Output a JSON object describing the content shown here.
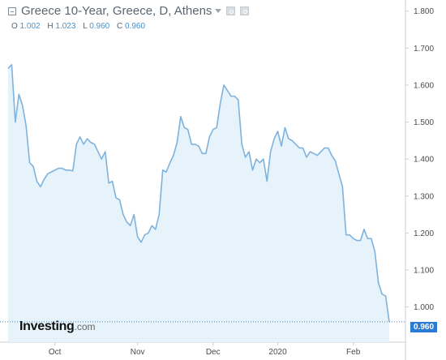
{
  "header": {
    "title": "Greece 10-Year, Greece, D, Athens",
    "ohlc": [
      {
        "label": "O",
        "value": "1.002"
      },
      {
        "label": "H",
        "value": "1.023"
      },
      {
        "label": "L",
        "value": "0.960"
      },
      {
        "label": "C",
        "value": "0.960"
      }
    ]
  },
  "branding": {
    "brand": "Investing",
    "tld": ".com"
  },
  "last_price_label": "0.960",
  "colors": {
    "line": "#7fb2dc",
    "fill": "#e6f3fb",
    "axis_text": "#4a4a4a",
    "axis_line": "#c9ced3",
    "price_badge": "#2b7bd5",
    "last_price_line": "#4d86b9"
  },
  "chart_data": {
    "type": "area",
    "title": "Greece 10-Year, Greece, D, Athens",
    "xlabel": "",
    "ylabel": "",
    "ylim": [
      0.905,
      1.83
    ],
    "x_ticks": [
      {
        "label": "Oct",
        "index": 13
      },
      {
        "label": "Nov",
        "index": 36
      },
      {
        "label": "Dec",
        "index": 57
      },
      {
        "label": "2020",
        "index": 75
      },
      {
        "label": "Feb",
        "index": 96
      }
    ],
    "y_ticks": [
      "1.000",
      "1.100",
      "1.200",
      "1.300",
      "1.400",
      "1.500",
      "1.600",
      "1.700",
      "1.800"
    ],
    "y_tick_values": [
      1.0,
      1.1,
      1.2,
      1.3,
      1.4,
      1.5,
      1.6,
      1.7,
      1.8
    ],
    "last_value": 0.96,
    "series": [
      {
        "values": [
          1.645,
          1.655,
          1.5,
          1.575,
          1.545,
          1.49,
          1.39,
          1.38,
          1.34,
          1.325,
          1.345,
          1.36,
          1.365,
          1.37,
          1.375,
          1.375,
          1.37,
          1.37,
          1.368,
          1.44,
          1.46,
          1.44,
          1.455,
          1.445,
          1.44,
          1.42,
          1.4,
          1.42,
          1.335,
          1.34,
          1.295,
          1.29,
          1.25,
          1.23,
          1.22,
          1.25,
          1.19,
          1.175,
          1.195,
          1.2,
          1.22,
          1.21,
          1.25,
          1.37,
          1.365,
          1.39,
          1.41,
          1.445,
          1.515,
          1.485,
          1.48,
          1.44,
          1.44,
          1.435,
          1.415,
          1.415,
          1.46,
          1.48,
          1.485,
          1.55,
          1.6,
          1.585,
          1.57,
          1.57,
          1.56,
          1.44,
          1.405,
          1.42,
          1.37,
          1.4,
          1.39,
          1.4,
          1.34,
          1.42,
          1.455,
          1.475,
          1.435,
          1.485,
          1.455,
          1.45,
          1.44,
          1.43,
          1.43,
          1.405,
          1.42,
          1.415,
          1.41,
          1.42,
          1.43,
          1.43,
          1.41,
          1.395,
          1.36,
          1.325,
          1.195,
          1.195,
          1.185,
          1.18,
          1.18,
          1.21,
          1.185,
          1.185,
          1.15,
          1.065,
          1.035,
          1.03,
          0.96
        ]
      }
    ]
  }
}
